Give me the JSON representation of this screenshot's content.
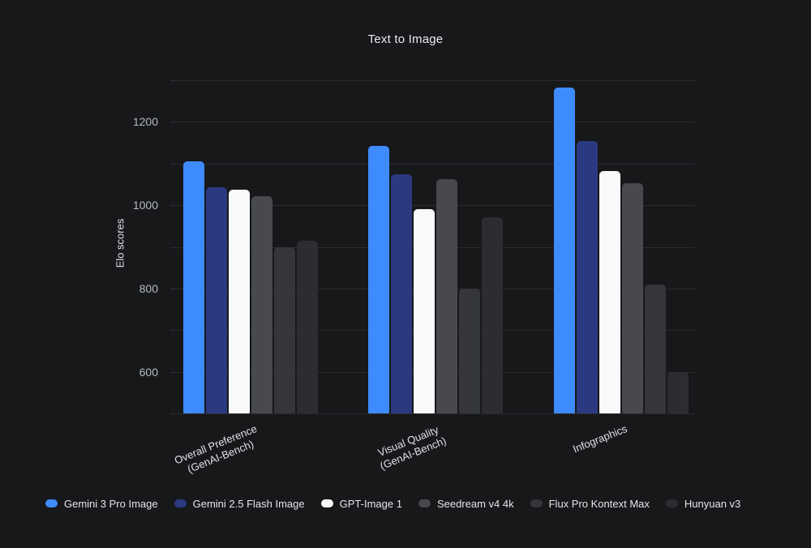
{
  "title": "Text to Image",
  "y_axis": {
    "label": "Elo scores"
  },
  "chart_data": {
    "type": "bar",
    "title": "Text to Image",
    "xlabel": "",
    "ylabel": "Elo scores",
    "ylim": [
      500,
      1300
    ],
    "yticks": [
      600,
      800,
      1000,
      1200
    ],
    "gridline_step": 100,
    "grid": true,
    "legend_position": "bottom",
    "categories": [
      "Overall Preference (GenAI-Bench)",
      "Visual Quality (GenAI-Bench)",
      "Infographics"
    ],
    "category_lines": [
      [
        "Overall Preference",
        "(GenAI-Bench)"
      ],
      [
        "Visual Quality",
        "(GenAI-Bench)"
      ],
      [
        "Infographics"
      ]
    ],
    "series": [
      {
        "name": "Gemini 3 Pro Image",
        "color": "#3e8bfd",
        "values": [
          1105,
          1142,
          1282
        ]
      },
      {
        "name": "Gemini 2.5 Flash Image",
        "color": "#2b3a80",
        "values": [
          1043,
          1075,
          1155
        ]
      },
      {
        "name": "GPT-Image 1",
        "color": "#f8f9fb",
        "values": [
          1037,
          990,
          1083
        ]
      },
      {
        "name": "Seedream v4 4k",
        "color": "#47494d",
        "values": [
          1022,
          1062,
          1052
        ]
      },
      {
        "name": "Flux Pro Kontext Max",
        "color": "#34363a",
        "values": [
          900,
          800,
          810
        ]
      },
      {
        "name": "Hunyuan v3",
        "color": "#2b2d31",
        "values": [
          915,
          972,
          600
        ]
      }
    ]
  },
  "colors": {
    "background": "#17181a",
    "title_text": "#e9ebee",
    "axis_tick_text": "#b7babf",
    "category_text": "#e0e2e6",
    "grid": "#2a2b2e",
    "accent_blue": "#3e8bfd"
  }
}
